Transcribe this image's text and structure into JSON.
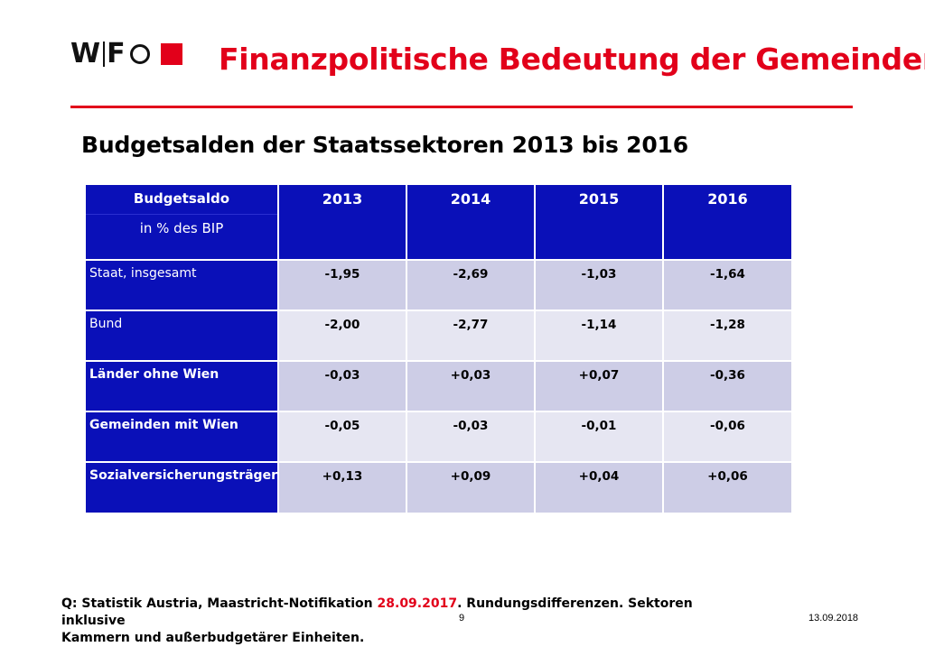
{
  "logo": {
    "letters_1": "W",
    "letters_2": "F"
  },
  "title": "Finanzpolitische Bedeutung der Gemeinden",
  "subtitle": "Budgetsalden der Staatssektoren 2013 bis 2016",
  "table": {
    "header_label_1": "Budgetsaldo",
    "header_label_2": "in % des BIP",
    "years": [
      "2013",
      "2014",
      "2015",
      "2016"
    ],
    "rows": [
      {
        "label": "Staat, insgesamt",
        "values": [
          "-1,95",
          "-2,69",
          "-1,03",
          "-1,64"
        ]
      },
      {
        "label": "Bund",
        "values": [
          "-2,00",
          "-2,77",
          "-1,14",
          "-1,28"
        ]
      },
      {
        "label": "Länder ohne Wien",
        "values": [
          "-0,03",
          "+0,03",
          "+0,07",
          "-0,36"
        ]
      },
      {
        "label": "Gemeinden mit Wien",
        "values": [
          "-0,05",
          "-0,03",
          "-0,01",
          "-0,06"
        ]
      },
      {
        "label": "Sozialversicherungsträger",
        "values": [
          "+0,13",
          "+0,09",
          "+0,04",
          "+0,06"
        ]
      }
    ]
  },
  "footnote": {
    "part1": "Q: Statistik Austria, Maastricht-Notifikation ",
    "date_highlight": "28.09.2017",
    "part2": ". Rundungsdifferenzen. Sektoren inklusive",
    "line2": "Kammern und  außerbudgetärer Einheiten."
  },
  "page_number": "9",
  "date": "13.09.2018",
  "colors": {
    "accent_red": "#e2001a",
    "header_blue": "#0a10b8"
  }
}
